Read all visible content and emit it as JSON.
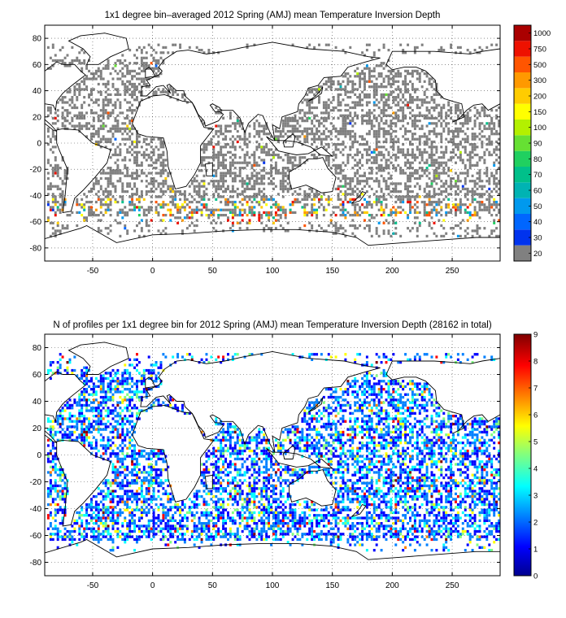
{
  "chart_data": [
    {
      "type": "heatmap",
      "title": "1x1 degree bin–averaged 2012 Spring (AMJ) mean Temperature Inversion Depth",
      "x_ticks": [
        -50,
        0,
        50,
        100,
        150,
        200,
        250
      ],
      "y_ticks": [
        80,
        60,
        40,
        20,
        0,
        -20,
        -40,
        -60,
        -80
      ],
      "xlim": [
        -90,
        290
      ],
      "ylim": [
        -90,
        90
      ],
      "grid": true,
      "colorbar": {
        "position": "right",
        "labels": [
          "20",
          "30",
          "40",
          "50",
          "60",
          "70",
          "80",
          "90",
          "100",
          "150",
          "200",
          "300",
          "500",
          "750",
          "1000"
        ],
        "colors": [
          "#808080",
          "#0033ee",
          "#0066ff",
          "#0099ee",
          "#00b3b3",
          "#00c08a",
          "#20d060",
          "#66e033",
          "#b3f000",
          "#ffff00",
          "#ffcc00",
          "#ff9900",
          "#ff5500",
          "#ee1100",
          "#aa0000"
        ]
      },
      "values_description_colors": {
        "dominant": "#808080",
        "southern_ocean": [
          "#ffff00",
          "#ff9900",
          "#ee1100",
          "#00c08a"
        ]
      }
    },
    {
      "type": "heatmap",
      "title": "N of profiles per 1x1 degree bin for 2012 Spring (AMJ) mean Temperature Inversion Depth  (28162 in total)",
      "x_ticks": [
        -50,
        0,
        50,
        100,
        150,
        200,
        250
      ],
      "y_ticks": [
        80,
        60,
        40,
        20,
        0,
        -20,
        -40,
        -60,
        -80
      ],
      "xlim": [
        -90,
        290
      ],
      "ylim": [
        -90,
        90
      ],
      "grid": true,
      "colorbar": {
        "position": "right",
        "ticks": [
          "0",
          "1",
          "2",
          "3",
          "4",
          "5",
          "6",
          "7",
          "8",
          "9"
        ],
        "range": [
          0,
          9
        ],
        "stops": [
          "#00008f",
          "#0000ff",
          "#0080ff",
          "#00ffff",
          "#80ff80",
          "#ffff00",
          "#ff8000",
          "#ff0000",
          "#800000"
        ]
      }
    }
  ]
}
